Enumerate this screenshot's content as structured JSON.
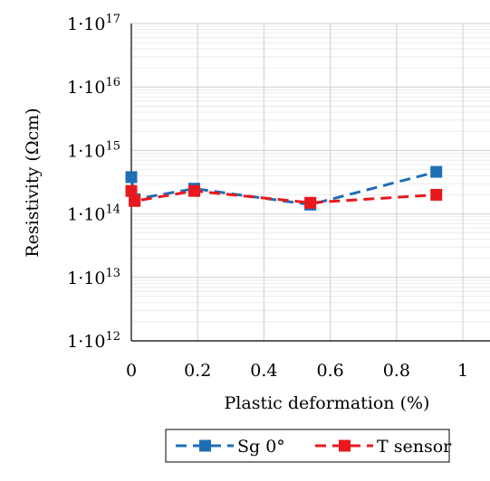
{
  "chart_data": {
    "type": "line",
    "xlabel": "Plastic deformation (%)",
    "ylabel": "Resistivity (Ωcm)",
    "x_range": [
      0,
      1
    ],
    "x_ticks": [
      "0",
      "0.2",
      "0.4",
      "0.6",
      "0.8",
      "1"
    ],
    "y_scale": "log",
    "y_range": [
      1000000000000.0,
      1e+17
    ],
    "y_ticks": [
      {
        "base": "1·10",
        "exp": "12"
      },
      {
        "base": "1·10",
        "exp": "13"
      },
      {
        "base": "1·10",
        "exp": "14"
      },
      {
        "base": "1·10",
        "exp": "15"
      },
      {
        "base": "1·10",
        "exp": "16"
      },
      {
        "base": "1·10",
        "exp": "17"
      }
    ],
    "grid": true,
    "legend_position": "bottom-center",
    "series": [
      {
        "name": "Sg 0°",
        "color": "#1f6eb5",
        "line_style": "dashed",
        "marker": "square",
        "points": [
          {
            "x": 0,
            "y": 380000000000000.0
          },
          {
            "x": 0.01,
            "y": 170000000000000.0
          },
          {
            "x": 0.19,
            "y": 250000000000000.0
          },
          {
            "x": 0.54,
            "y": 140000000000000.0
          },
          {
            "x": 0.92,
            "y": 460000000000000.0
          }
        ]
      },
      {
        "name": "T sensor",
        "color": "#e8191c",
        "line_style": "dashed",
        "marker": "square",
        "points": [
          {
            "x": 0,
            "y": 230000000000000.0
          },
          {
            "x": 0.01,
            "y": 160000000000000.0
          },
          {
            "x": 0.19,
            "y": 230000000000000.0
          },
          {
            "x": 0.54,
            "y": 150000000000000.0
          },
          {
            "x": 0.92,
            "y": 200000000000000.0
          }
        ]
      }
    ]
  }
}
